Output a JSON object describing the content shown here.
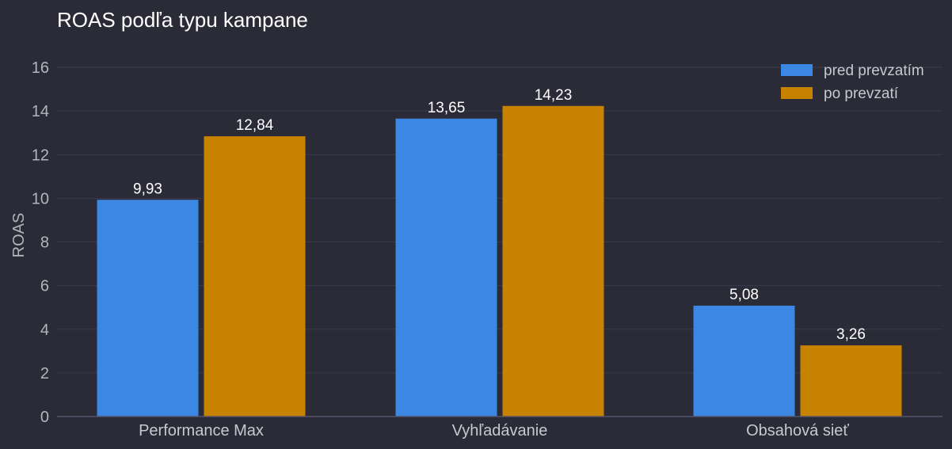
{
  "chart_data": {
    "type": "bar",
    "title": "ROAS podľa typu kampane",
    "ylabel": "ROAS",
    "xlabel": "",
    "categories": [
      "Performance Max",
      "Vyhľadávanie",
      "Obsahová sieť"
    ],
    "series": [
      {
        "name": "pred prevzatím",
        "color": "#3a87e4",
        "values": [
          9.93,
          13.65,
          5.08
        ],
        "labels": [
          "9,93",
          "13,65",
          "5,08"
        ]
      },
      {
        "name": "po prevzatí",
        "color": "#c78300",
        "values": [
          12.84,
          14.23,
          3.26
        ],
        "labels": [
          "12,84",
          "14,23",
          "3,26"
        ]
      }
    ],
    "ylim": [
      0,
      16
    ],
    "yticks": [
      0,
      2,
      4,
      6,
      8,
      10,
      12,
      14,
      16
    ],
    "grid": true,
    "legend_position": "top-right"
  }
}
